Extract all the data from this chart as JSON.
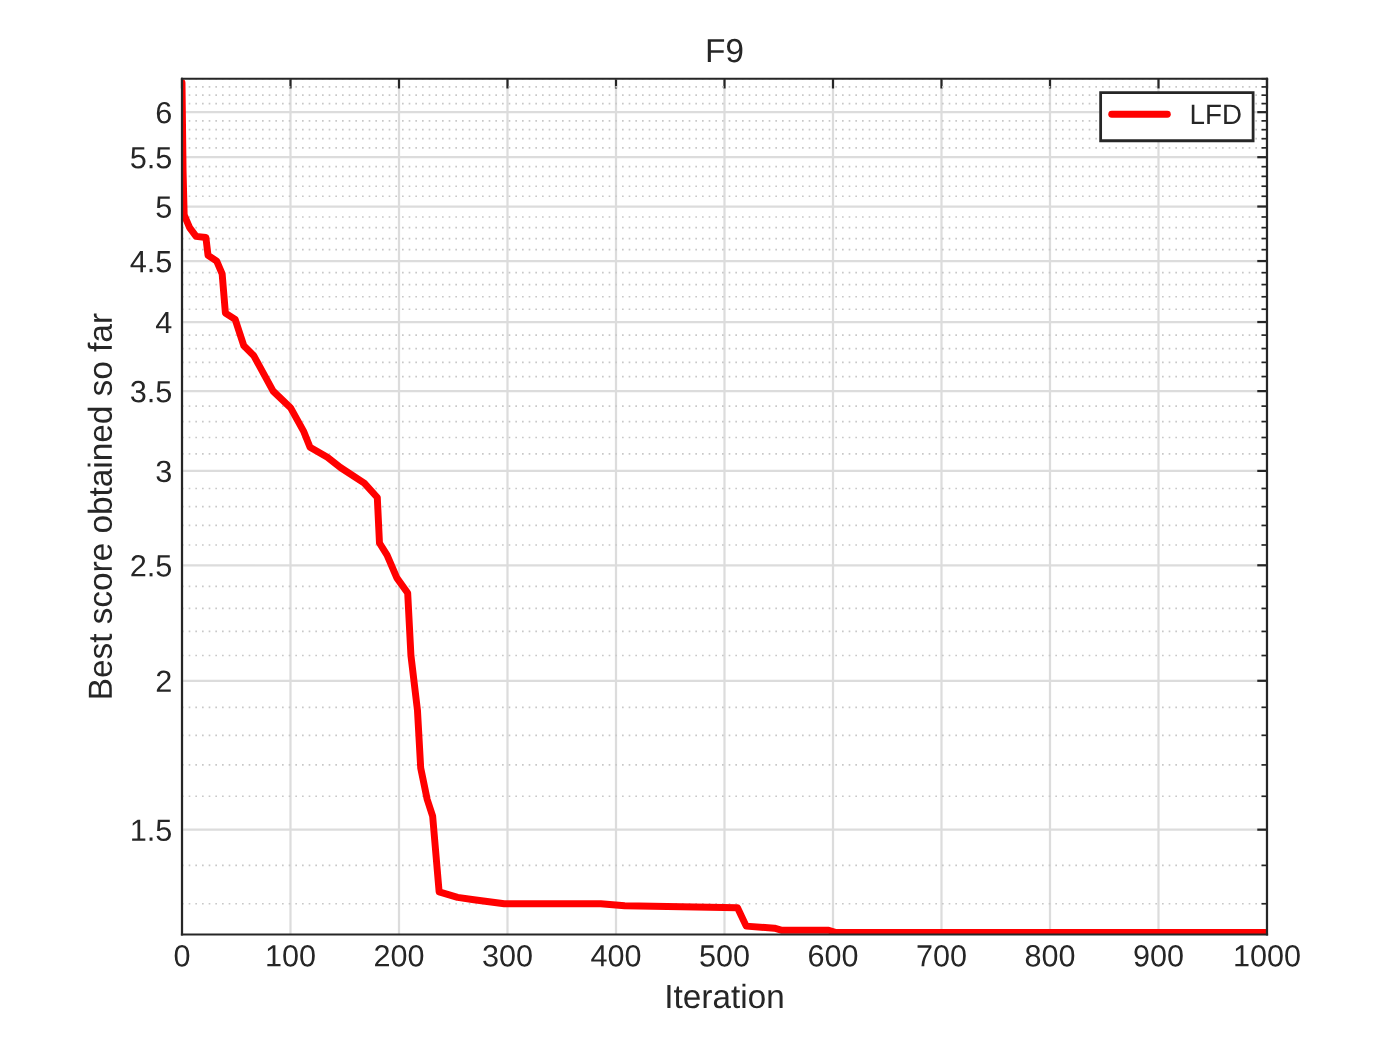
{
  "chart_data": {
    "type": "line",
    "title": "F9",
    "xlabel": "Iteration",
    "ylabel": "Best score obtained so far",
    "log": "y",
    "grid": true,
    "legend": "top right",
    "line_style": "solid",
    "marker": "none",
    "xlim": [
      0,
      1000
    ],
    "xticks": [
      0,
      100,
      200,
      300,
      400,
      500,
      600,
      700,
      800,
      900,
      1000
    ],
    "ylim": [
      1.225,
      6.4
    ],
    "yticks": [
      1.5,
      2,
      2.5,
      3,
      3.5,
      4,
      4.5,
      5,
      5.5,
      6
    ],
    "series": [
      {
        "name": "LFD",
        "color": "#ff0000",
        "x": [
          0,
          1,
          2,
          7,
          13,
          22,
          24,
          32,
          37,
          40,
          49,
          57,
          66,
          84,
          100,
          112,
          118,
          134,
          146,
          168,
          180,
          182,
          189,
          198,
          208,
          211,
          217,
          220,
          226,
          231,
          237,
          254,
          269,
          297,
          300,
          386,
          408,
          512,
          520,
          546,
          553,
          596,
          602,
          1000
        ],
        "values": [
          6.35,
          5.35,
          4.92,
          4.8,
          4.72,
          4.71,
          4.55,
          4.5,
          4.39,
          4.07,
          4.02,
          3.82,
          3.75,
          3.5,
          3.39,
          3.24,
          3.14,
          3.08,
          3.02,
          2.93,
          2.85,
          2.61,
          2.55,
          2.44,
          2.37,
          2.1,
          1.89,
          1.69,
          1.59,
          1.54,
          1.33,
          1.316,
          1.31,
          1.3,
          1.3,
          1.3,
          1.295,
          1.29,
          1.245,
          1.24,
          1.235,
          1.235,
          1.23,
          1.23
        ]
      }
    ]
  }
}
